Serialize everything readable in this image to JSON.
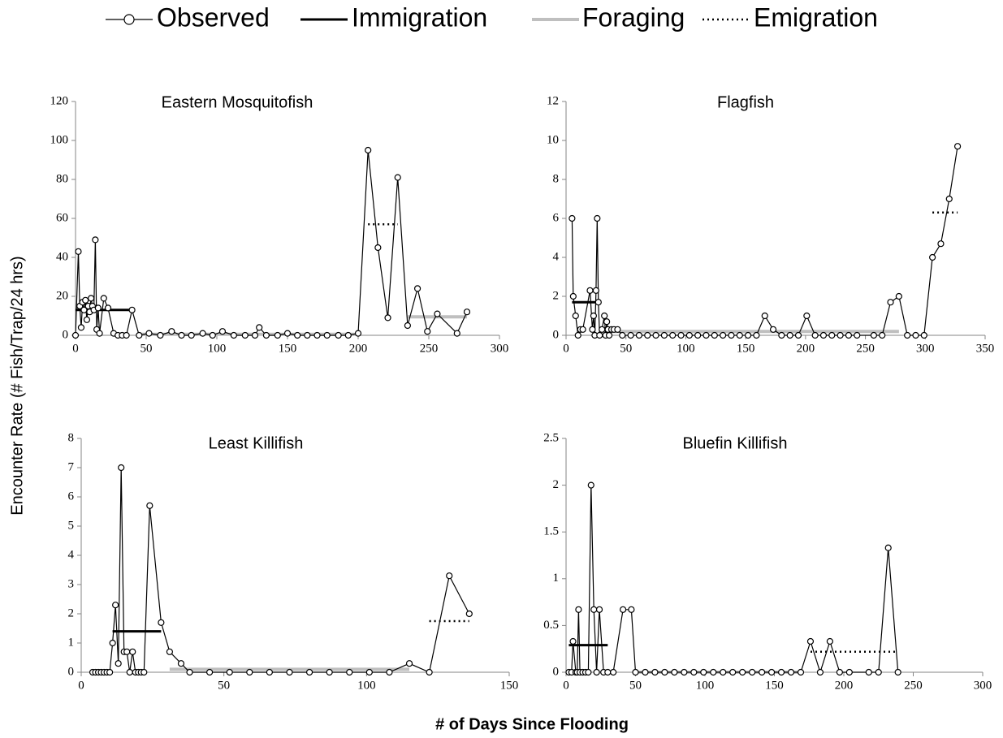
{
  "ylabel": "Encounter Rate (# Fish/Trap/24 hrs)",
  "xlabel": "# of Days Since Flooding",
  "chart_data": [
    {
      "type": "line",
      "title": "Eastern Mosquitofish",
      "xlim": [
        0,
        300
      ],
      "xticks": [
        0,
        50,
        100,
        150,
        200,
        250,
        300
      ],
      "ylim": [
        0,
        120
      ],
      "yticks": [
        0,
        20,
        40,
        60,
        80,
        100,
        120
      ],
      "series": [
        {
          "name": "Observed",
          "color": "#000000",
          "style": "solid",
          "marker": "circle",
          "x": [
            0,
            2,
            3,
            4,
            5,
            6,
            7,
            8,
            9,
            10,
            11,
            12,
            13,
            14,
            15,
            16,
            17,
            20,
            23,
            27,
            30,
            33,
            36,
            40,
            45,
            52,
            60,
            68,
            75,
            82,
            90,
            97,
            104,
            112,
            120,
            127,
            130,
            135,
            143,
            150,
            157,
            164,
            171,
            178,
            186,
            193,
            200,
            207,
            214,
            221,
            228,
            235,
            242,
            249,
            256,
            270,
            277
          ],
          "values": [
            0,
            43,
            15,
            4,
            17,
            13,
            18,
            8,
            15,
            12,
            19,
            15,
            13,
            49,
            3,
            14,
            1,
            19,
            14,
            1,
            0,
            0,
            0,
            13,
            0,
            1,
            0,
            2,
            0,
            0,
            1,
            0,
            2,
            0,
            0,
            0,
            4,
            0,
            0,
            1,
            0,
            0,
            0,
            0,
            0,
            0,
            1,
            95,
            45,
            9,
            81,
            5,
            24,
            2,
            11,
            1,
            12
          ]
        },
        {
          "name": "Immigration",
          "color": "#000000",
          "style": "thick",
          "x": [
            0,
            40
          ],
          "values": [
            13,
            13
          ]
        },
        {
          "name": "Foraging",
          "color": "#bfbfbf",
          "style": "thick",
          "x": [
            45,
            200,
            null,
            235,
            277
          ],
          "values": [
            0.5,
            0.5,
            null,
            9.5,
            9.5
          ]
        },
        {
          "name": "Emigration",
          "color": "#000000",
          "style": "dotted",
          "x": [
            207,
            228
          ],
          "values": [
            57,
            57
          ]
        }
      ]
    },
    {
      "type": "line",
      "title": "Flagfish",
      "xlim": [
        0,
        350
      ],
      "xticks": [
        0,
        50,
        100,
        150,
        200,
        250,
        300,
        350
      ],
      "ylim": [
        0,
        12
      ],
      "yticks": [
        0,
        2,
        4,
        6,
        8,
        10,
        12
      ],
      "series": [
        {
          "name": "Observed",
          "color": "#000000",
          "style": "solid",
          "marker": "circle",
          "x": [
            5,
            6,
            8,
            10,
            12,
            14,
            20,
            22,
            23,
            24,
            25,
            26,
            27,
            28,
            30,
            32,
            33,
            34,
            35,
            36,
            38,
            40,
            43,
            47,
            54,
            61,
            68,
            75,
            82,
            89,
            96,
            103,
            110,
            117,
            124,
            131,
            138,
            145,
            152,
            159,
            166,
            173,
            180,
            187,
            194,
            201,
            208,
            215,
            222,
            229,
            236,
            243,
            257,
            264,
            271,
            278,
            285,
            292,
            299,
            306,
            313,
            320,
            327
          ],
          "values": [
            6,
            2,
            1,
            0,
            0.3,
            0.3,
            2.3,
            0.3,
            1,
            0,
            2.3,
            6,
            1.7,
            0,
            0.3,
            1,
            0,
            0.7,
            0.3,
            0,
            0.3,
            0.3,
            0.3,
            0,
            0,
            0,
            0,
            0,
            0,
            0,
            0,
            0,
            0,
            0,
            0,
            0,
            0,
            0,
            0,
            0,
            1,
            0.3,
            0,
            0,
            0,
            1,
            0,
            0,
            0,
            0,
            0,
            0,
            0,
            0,
            1.7,
            2,
            0,
            0,
            0,
            4,
            4.7,
            7,
            9.7
          ]
        },
        {
          "name": "Immigration",
          "color": "#000000",
          "style": "thick",
          "x": [
            5,
            28
          ],
          "values": [
            1.7,
            1.7
          ]
        },
        {
          "name": "Foraging",
          "color": "#bfbfbf",
          "style": "thick",
          "x": [
            30,
            278
          ],
          "values": [
            0.2,
            0.2
          ]
        },
        {
          "name": "Emigration",
          "color": "#000000",
          "style": "dotted",
          "x": [
            306,
            327
          ],
          "values": [
            6.3,
            6.3
          ]
        }
      ]
    },
    {
      "type": "line",
      "title": "Least Killifish",
      "xlim": [
        0,
        150
      ],
      "xticks": [
        0,
        50,
        100,
        150
      ],
      "ylim": [
        0,
        8
      ],
      "yticks": [
        0,
        1,
        2,
        3,
        4,
        5,
        6,
        7,
        8
      ],
      "series": [
        {
          "name": "Observed",
          "color": "#000000",
          "style": "solid",
          "marker": "circle",
          "x": [
            4,
            5,
            6,
            7,
            8,
            9,
            10,
            11,
            12,
            13,
            14,
            15,
            16,
            17,
            18,
            19,
            20,
            21,
            22,
            24,
            28,
            31,
            35,
            38,
            45,
            52,
            59,
            66,
            73,
            80,
            87,
            94,
            101,
            108,
            115,
            122,
            129,
            136
          ],
          "values": [
            0,
            0,
            0,
            0,
            0,
            0,
            0,
            1,
            2.3,
            0.3,
            7,
            0.7,
            0.7,
            0,
            0.7,
            0,
            0,
            0,
            0,
            5.7,
            1.7,
            0.7,
            0.3,
            0,
            0,
            0,
            0,
            0,
            0,
            0,
            0,
            0,
            0,
            0,
            0.3,
            0,
            3.3,
            2
          ]
        },
        {
          "name": "Immigration",
          "color": "#000000",
          "style": "thick",
          "x": [
            11,
            28
          ],
          "values": [
            1.4,
            1.4
          ]
        },
        {
          "name": "Foraging",
          "color": "#bfbfbf",
          "style": "thick",
          "x": [
            4,
            10,
            null,
            31,
            115
          ],
          "values": [
            0,
            0,
            null,
            0.1,
            0.1
          ]
        },
        {
          "name": "Emigration",
          "color": "#000000",
          "style": "dotted",
          "x": [
            122,
            136
          ],
          "values": [
            1.75,
            1.75
          ]
        }
      ]
    },
    {
      "type": "line",
      "title": "Bluefin Killifish",
      "xlim": [
        0,
        300
      ],
      "xticks": [
        0,
        50,
        100,
        150,
        200,
        250,
        300
      ],
      "ylim": [
        0,
        2.5
      ],
      "yticks": [
        0,
        0.5,
        1,
        1.5,
        2,
        2.5
      ],
      "series": [
        {
          "name": "Observed",
          "color": "#000000",
          "style": "solid",
          "marker": "circle",
          "x": [
            2,
            4,
            5,
            7,
            8,
            9,
            10,
            12,
            14,
            16,
            18,
            20,
            22,
            24,
            27,
            30,
            34,
            41,
            47,
            50,
            57,
            64,
            71,
            78,
            85,
            92,
            99,
            106,
            113,
            120,
            127,
            134,
            141,
            148,
            155,
            162,
            169,
            176,
            183,
            190,
            197,
            204,
            218,
            225,
            232,
            239
          ],
          "values": [
            0,
            0,
            0.33,
            0,
            0,
            0.67,
            0,
            0,
            0,
            0,
            2,
            0.67,
            0,
            0.67,
            0,
            0,
            0,
            0.67,
            0.67,
            0,
            0,
            0,
            0,
            0,
            0,
            0,
            0,
            0,
            0,
            0,
            0,
            0,
            0,
            0,
            0,
            0,
            0,
            0.33,
            0,
            0.33,
            0,
            0,
            0,
            0,
            1.33,
            0
          ]
        },
        {
          "name": "Immigration",
          "color": "#000000",
          "style": "thick",
          "x": [
            2,
            30
          ],
          "values": [
            0.29,
            0.29
          ]
        },
        {
          "name": "Foraging",
          "color": "#bfbfbf",
          "style": "thick",
          "x": [
            2,
            12,
            null,
            50,
            169
          ],
          "values": [
            0,
            0,
            null,
            0,
            0
          ]
        },
        {
          "name": "Emigration",
          "color": "#000000",
          "style": "dotted",
          "x": [
            176,
            239
          ],
          "values": [
            0.22,
            0.22
          ]
        }
      ]
    }
  ]
}
